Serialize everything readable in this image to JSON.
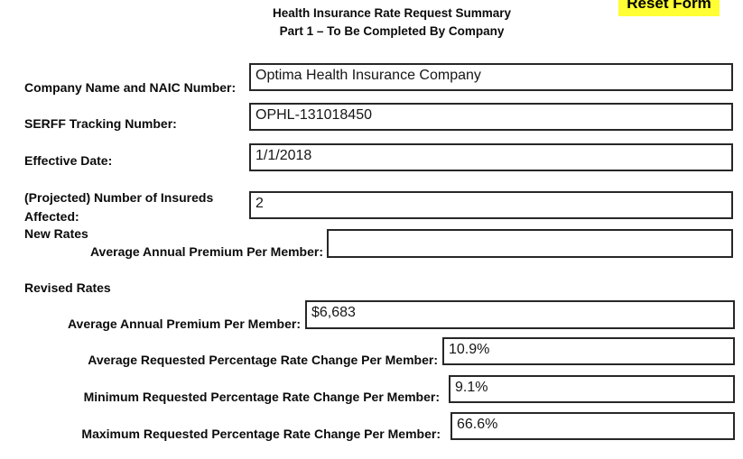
{
  "header": {
    "title": "Health Insurance Rate Request Summary",
    "subtitle": "Part 1 – To Be Completed By Company"
  },
  "reset_button": {
    "label": "Reset Form",
    "highlight_color": "#FFFF33",
    "text_color": "#000000"
  },
  "fields": {
    "company": {
      "label": "Company Name and NAIC Number:",
      "value": "Optima Health Insurance Company"
    },
    "serff": {
      "label": "SERFF Tracking Number:",
      "value": "OPHL-131018450"
    },
    "effective_date": {
      "label": "Effective Date:",
      "value": "1/1/2018"
    },
    "insureds_affected": {
      "label": "(Projected) Number of Insureds Affected:",
      "value": "2"
    }
  },
  "new_rates": {
    "heading": "New Rates",
    "avg_premium": {
      "label": "Average Annual Premium Per Member:",
      "value": ""
    }
  },
  "revised_rates": {
    "heading": "Revised Rates",
    "avg_premium": {
      "label": "Average Annual Premium Per Member:",
      "value": "$6,683"
    },
    "avg_change": {
      "label": "Average Requested Percentage Rate Change Per Member:",
      "value": "10.9%"
    },
    "min_change": {
      "label": "Minimum Requested Percentage Rate Change Per Member:",
      "value": "9.1%"
    },
    "max_change": {
      "label": "Maximum Requested Percentage Rate Change Per Member:",
      "value": "66.6%"
    }
  }
}
